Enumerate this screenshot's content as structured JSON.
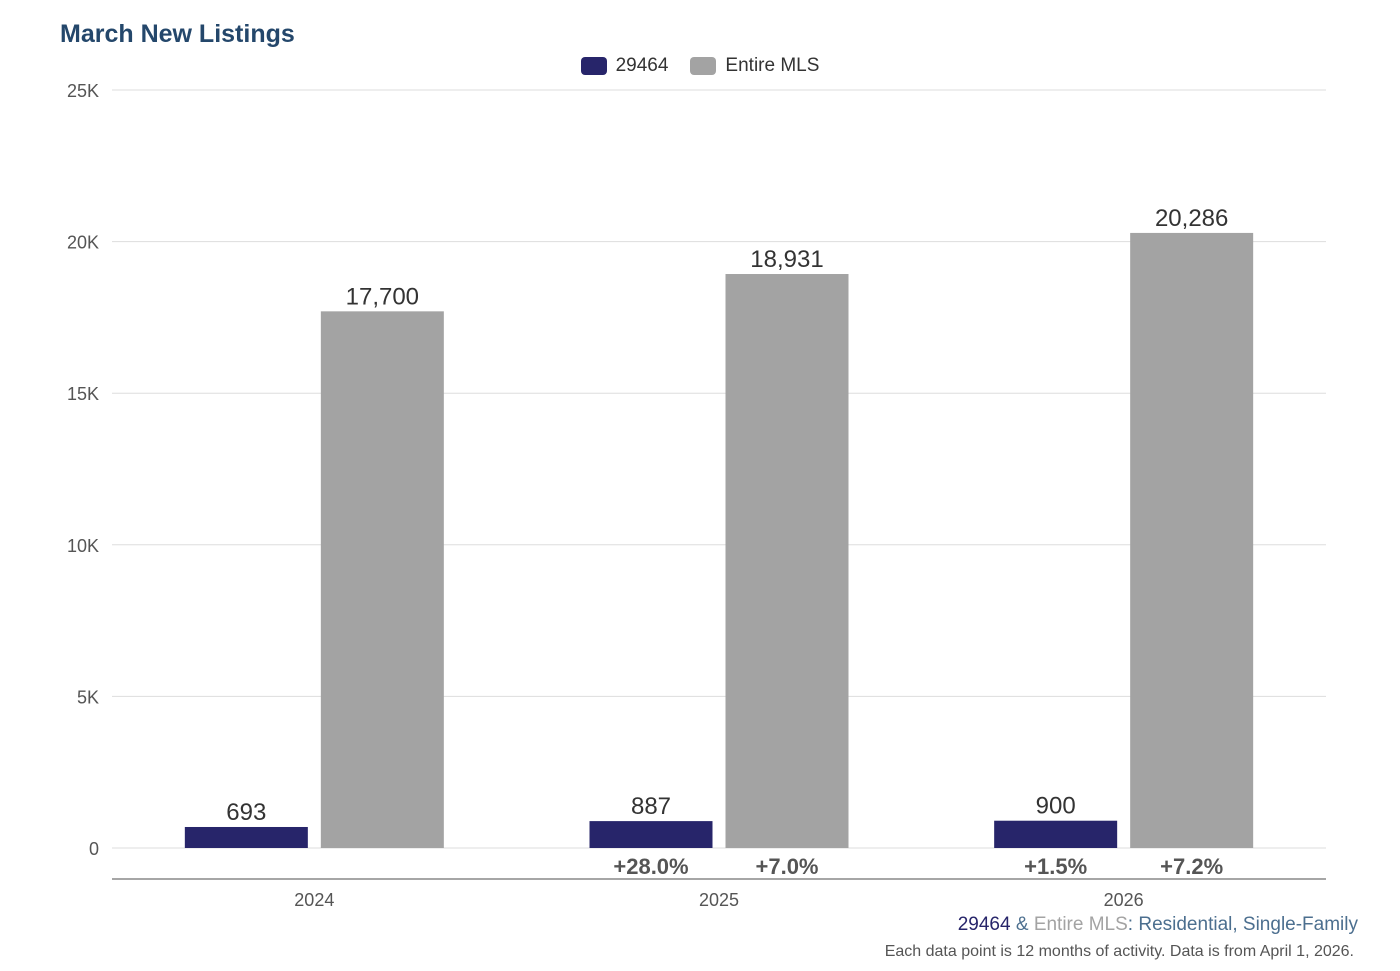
{
  "title": "March New Listings",
  "legend": [
    {
      "label": "29464",
      "color": "#27256a"
    },
    {
      "label": "Entire MLS",
      "color": "#a3a3a3"
    }
  ],
  "chart_data": {
    "type": "bar",
    "categories": [
      "2024",
      "2025",
      "2026"
    ],
    "series": [
      {
        "name": "29464",
        "color": "#27256a",
        "values": [
          693,
          887,
          900
        ],
        "value_labels": [
          "693",
          "887",
          "900"
        ],
        "change_labels": [
          "",
          "+28.0%",
          "+1.5%"
        ]
      },
      {
        "name": "Entire MLS",
        "color": "#a3a3a3",
        "values": [
          17700,
          18931,
          20286
        ],
        "value_labels": [
          "17,700",
          "18,931",
          "20,286"
        ],
        "change_labels": [
          "",
          "+7.0%",
          "+7.2%"
        ]
      }
    ],
    "y_ticks": [
      0,
      5000,
      10000,
      15000,
      20000,
      25000
    ],
    "y_tick_labels": [
      "0",
      "5K",
      "10K",
      "15K",
      "20K",
      "25K"
    ],
    "ylim": [
      0,
      25000
    ],
    "grid": true,
    "legend_position": "top-center"
  },
  "subtitle": {
    "area": "29464",
    "amp": " & ",
    "mls": "Entire MLS",
    "rest": ": Residential, Single-Family"
  },
  "footnote": "Each data point is 12 months of activity. Data is from April 1, 2026."
}
